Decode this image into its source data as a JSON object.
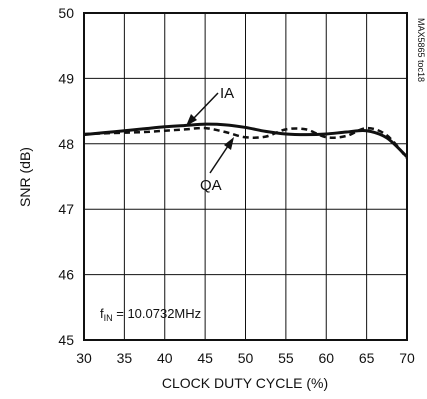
{
  "chart_data": {
    "type": "line",
    "xlabel": "CLOCK DUTY CYCLE (%)",
    "ylabel": "SNR (dB)",
    "xlim": [
      30,
      70
    ],
    "ylim": [
      45,
      50
    ],
    "xticks": [
      30,
      35,
      40,
      45,
      50,
      55,
      60,
      65,
      70
    ],
    "yticks": [
      45,
      46,
      47,
      48,
      49,
      50
    ],
    "grid": true,
    "series": [
      {
        "name": "IA",
        "style": "solid",
        "x": [
          30,
          32.5,
          35,
          37.5,
          40,
          42.5,
          45,
          47.5,
          50,
          52.5,
          55,
          57.5,
          60,
          62.5,
          65,
          67.5,
          70
        ],
        "y": [
          48.14,
          48.17,
          48.2,
          48.23,
          48.26,
          48.28,
          48.3,
          48.29,
          48.25,
          48.19,
          48.15,
          48.14,
          48.15,
          48.18,
          48.2,
          48.09,
          47.8
        ]
      },
      {
        "name": "QA",
        "style": "dashed",
        "x": [
          30,
          32.5,
          35,
          37.5,
          40,
          42.5,
          45,
          47.5,
          50,
          52.5,
          55,
          57.5,
          60,
          62.5,
          65,
          67.5,
          70
        ],
        "y": [
          48.15,
          48.16,
          48.17,
          48.18,
          48.2,
          48.22,
          48.24,
          48.18,
          48.1,
          48.11,
          48.22,
          48.22,
          48.1,
          48.12,
          48.24,
          48.13,
          47.78
        ]
      }
    ],
    "annotations": {
      "ia_label": "IA",
      "qa_label": "QA",
      "condition_prefix": "f",
      "condition_subscript": "IN",
      "condition_value": " = 10.0732MHz",
      "watermark": "MAX5865 toc18"
    }
  }
}
